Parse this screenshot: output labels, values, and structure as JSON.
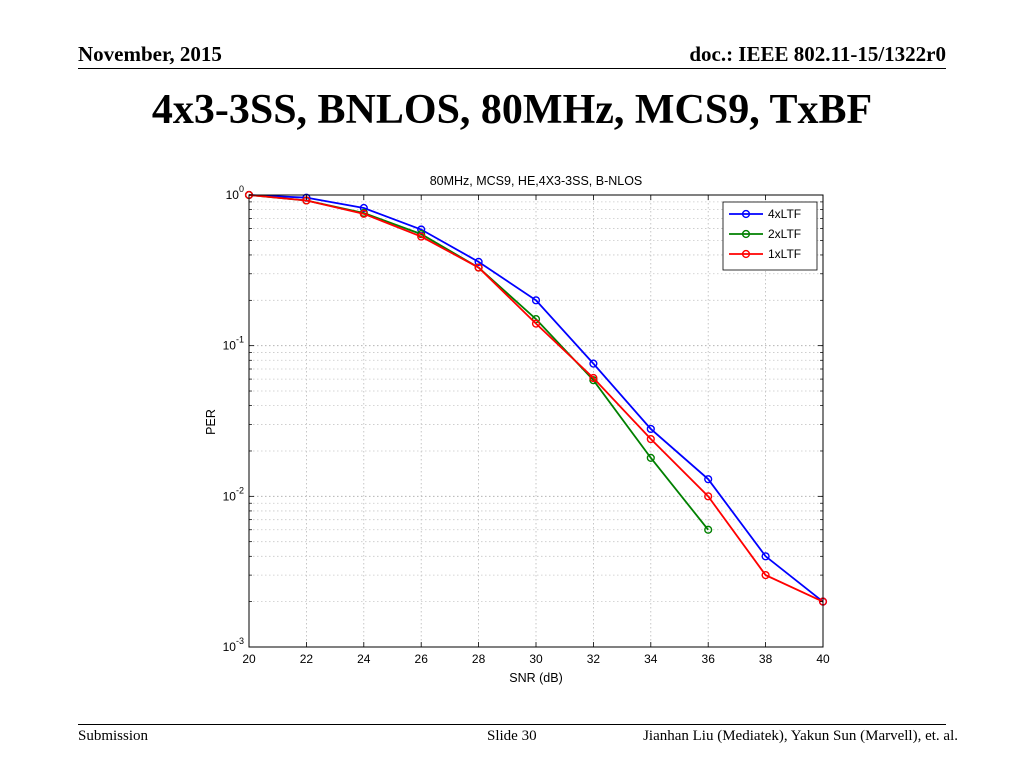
{
  "slide": {
    "header_left": "November, 2015",
    "header_right": "doc.: IEEE 802.11-15/1322r0",
    "title": "4x3-3SS, BNLOS, 80MHz, MCS9, TxBF",
    "footer_left": "Submission",
    "footer_center": "Slide 30",
    "footer_right": "Jianhan Liu (Mediatek), Yakun Sun (Marvell),  et. al."
  },
  "chart_data": {
    "type": "line",
    "title": "80MHz, MCS9, HE,4X3-3SS, B-NLOS",
    "xlabel": "SNR (dB)",
    "ylabel": "PER",
    "xlim": [
      20,
      40
    ],
    "ylim": [
      0.001,
      1
    ],
    "yscale": "log",
    "grid": true,
    "legend_position": "top-right",
    "x_ticks": [
      20,
      22,
      24,
      26,
      28,
      30,
      32,
      34,
      36,
      38,
      40
    ],
    "y_ticks": [
      {
        "base": "10",
        "exp": "0",
        "value": 1
      },
      {
        "base": "10",
        "exp": "-1",
        "value": 0.1
      },
      {
        "base": "10",
        "exp": "-2",
        "value": 0.01
      },
      {
        "base": "10",
        "exp": "-3",
        "value": 0.001
      }
    ],
    "series": [
      {
        "name": "4xLTF",
        "color": "#0000ff",
        "x": [
          20,
          22,
          24,
          26,
          28,
          30,
          32,
          34,
          36,
          38,
          40
        ],
        "y": [
          1.0,
          0.96,
          0.82,
          0.59,
          0.36,
          0.2,
          0.076,
          0.028,
          0.013,
          0.004,
          0.002
        ]
      },
      {
        "name": "2xLTF",
        "color": "#008000",
        "x": [
          20,
          22,
          24,
          26,
          28,
          30,
          32,
          34,
          36
        ],
        "y": [
          1.0,
          0.92,
          0.76,
          0.55,
          0.33,
          0.15,
          0.059,
          0.018,
          0.006
        ]
      },
      {
        "name": "1xLTF",
        "color": "#ff0000",
        "x": [
          20,
          22,
          24,
          26,
          28,
          30,
          32,
          34,
          36,
          38,
          40
        ],
        "y": [
          1.0,
          0.92,
          0.75,
          0.53,
          0.33,
          0.14,
          0.061,
          0.024,
          0.01,
          0.003,
          0.002
        ]
      }
    ]
  }
}
